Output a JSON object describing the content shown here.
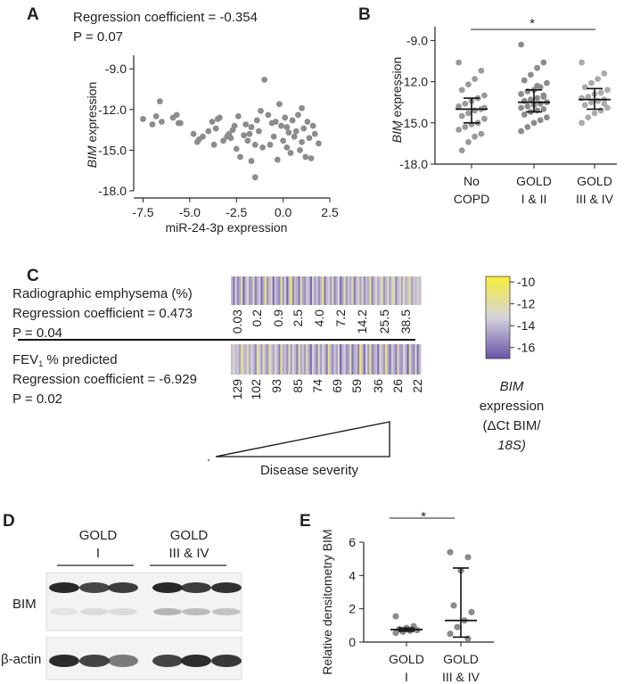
{
  "colors": {
    "point": "#8c8c8c",
    "point_light": "#ababab",
    "axis": "#222222",
    "heat_low": "#6a56a8",
    "heat_mid": "#d6d3dc",
    "heat_high": "#f7ee3a"
  },
  "chart_data": [
    {
      "panel": "A",
      "type": "scatter",
      "annotation_line1": "Regression coefficient = -0.354",
      "annotation_line2": "P = 0.07",
      "xlabel": "miR-24-3p expression",
      "ylabel_italic": "BIM",
      "ylabel_rest": " expression",
      "xlim": [
        -8,
        2.5
      ],
      "ylim": [
        -18,
        -8
      ],
      "xticks": [
        "-7.5",
        "-5.0",
        "-2.5",
        "0.0",
        "2.5"
      ],
      "yticks": [
        "-9.0",
        "-12.0",
        "-15.0",
        "-18.0"
      ],
      "points": [
        [
          -7.5,
          -12.7
        ],
        [
          -7.0,
          -13.1
        ],
        [
          -6.8,
          -12.5
        ],
        [
          -6.6,
          -11.4
        ],
        [
          -6.5,
          -12.9
        ],
        [
          -5.9,
          -12.6
        ],
        [
          -5.7,
          -12.4
        ],
        [
          -5.6,
          -13.0
        ],
        [
          -5.5,
          -13.0
        ],
        [
          -4.8,
          -13.8
        ],
        [
          -4.5,
          -14.2
        ],
        [
          -4.3,
          -14.0
        ],
        [
          -4.0,
          -13.6
        ],
        [
          -3.8,
          -12.9
        ],
        [
          -3.7,
          -14.6
        ],
        [
          -3.6,
          -13.4
        ],
        [
          -3.5,
          -12.7
        ],
        [
          -3.4,
          -12.6
        ],
        [
          -3.2,
          -14.3
        ],
        [
          -3.0,
          -14.0
        ],
        [
          -2.9,
          -13.8
        ],
        [
          -2.8,
          -14.1
        ],
        [
          -2.7,
          -13.5
        ],
        [
          -2.5,
          -14.9
        ],
        [
          -2.4,
          -12.5
        ],
        [
          -2.3,
          -15.5
        ],
        [
          -2.1,
          -13.9
        ],
        [
          -2.0,
          -13.1
        ],
        [
          -1.9,
          -14.3
        ],
        [
          -1.8,
          -13.8
        ],
        [
          -1.7,
          -15.8
        ],
        [
          -1.7,
          -13.3
        ],
        [
          -1.5,
          -17.0
        ],
        [
          -1.5,
          -14.6
        ],
        [
          -1.4,
          -12.8
        ],
        [
          -1.3,
          -13.6
        ],
        [
          -1.2,
          -12.1
        ],
        [
          -1.1,
          -14.8
        ],
        [
          -1.0,
          -9.8
        ],
        [
          -0.8,
          -12.4
        ],
        [
          -0.7,
          -14.6
        ],
        [
          -0.6,
          -13.0
        ],
        [
          -0.5,
          -14.0
        ],
        [
          -0.4,
          -12.9
        ],
        [
          -0.3,
          -15.7
        ],
        [
          -0.2,
          -11.6
        ],
        [
          -0.1,
          -13.2
        ],
        [
          0.0,
          -14.3
        ],
        [
          0.1,
          -12.6
        ],
        [
          0.2,
          -13.3
        ],
        [
          0.2,
          -14.8
        ],
        [
          0.3,
          -13.7
        ],
        [
          0.4,
          -15.2
        ],
        [
          0.5,
          -12.8
        ],
        [
          0.6,
          -14.0
        ],
        [
          0.7,
          -13.6
        ],
        [
          0.8,
          -12.4
        ],
        [
          0.9,
          -15.0
        ],
        [
          1.0,
          -14.4
        ],
        [
          1.0,
          -11.9
        ],
        [
          1.1,
          -13.4
        ],
        [
          1.2,
          -15.5
        ],
        [
          1.3,
          -12.9
        ],
        [
          1.4,
          -14.1
        ],
        [
          1.5,
          -15.6
        ],
        [
          1.6,
          -13.2
        ],
        [
          1.7,
          -13.8
        ],
        [
          1.9,
          -14.5
        ],
        [
          -4.6,
          -14.4
        ],
        [
          -2.6,
          -13.2
        ]
      ]
    },
    {
      "panel": "B",
      "type": "scatter",
      "ylabel_italic": "BIM",
      "ylabel_rest": " expression",
      "ylim": [
        -18,
        -8
      ],
      "yticks": [
        "-9.0",
        "-12.0",
        "-15.0",
        "-18.0"
      ],
      "significance": "*",
      "groups": [
        {
          "label_line1": "No",
          "label_line2": "COPD",
          "median": -14.0,
          "q1": -15.0,
          "q3": -13.2,
          "values": [
            -10.6,
            -11.2,
            -11.8,
            -12.2,
            -12.6,
            -13.0,
            -13.2,
            -13.4,
            -13.6,
            -13.8,
            -14.0,
            -14.1,
            -14.3,
            -14.5,
            -14.7,
            -15.0,
            -15.1,
            -15.3,
            -15.5,
            -15.8,
            -16.0,
            -16.4,
            -17.0,
            -13.9
          ]
        },
        {
          "label_line1": "GOLD",
          "label_line2": "I & II",
          "median": -13.5,
          "q1": -14.2,
          "q3": -12.6,
          "values": [
            -9.3,
            -10.6,
            -11.0,
            -11.5,
            -11.9,
            -12.1,
            -12.4,
            -12.6,
            -12.7,
            -12.9,
            -13.0,
            -13.2,
            -13.3,
            -13.4,
            -13.5,
            -13.6,
            -13.7,
            -13.8,
            -13.9,
            -14.0,
            -14.1,
            -14.2,
            -14.4,
            -14.6,
            -14.8,
            -15.0,
            -15.3,
            -15.6,
            -13.1,
            -12.3
          ]
        },
        {
          "label_line1": "GOLD",
          "label_line2": "III & IV",
          "median": -13.3,
          "q1": -14.0,
          "q3": -12.5,
          "values": [
            -10.6,
            -11.4,
            -11.8,
            -12.1,
            -12.4,
            -12.6,
            -12.8,
            -12.9,
            -13.1,
            -13.2,
            -13.3,
            -13.4,
            -13.5,
            -13.7,
            -13.9,
            -14.1,
            -14.3,
            -14.6,
            -15.0,
            -13.6
          ]
        }
      ]
    },
    {
      "panel": "C",
      "type": "heatmap",
      "row1_title": "Radiographic emphysema (%)",
      "row1_coef": "Regression coefficient = 0.473",
      "row1_p": "P = 0.04",
      "row1_ticks": [
        "0.03",
        "0.2",
        "0.9",
        "2.5",
        "4.0",
        "7.2",
        "14.2",
        "25.5",
        "38.5"
      ],
      "row2_title_main": "FEV",
      "row2_title_sub": "1",
      "row2_title_rest": " % predicted",
      "row2_coef": "Regression coefficient = -6.929",
      "row2_p": "P = 0.02",
      "row2_ticks": [
        "129",
        "102",
        "93",
        "85",
        "74",
        "69",
        "59",
        "36",
        "26",
        "22"
      ],
      "severity_label": "Disease severity",
      "colorbar_ticks": [
        "-10",
        "-12",
        "-14",
        "-16"
      ],
      "colorbar_range": [
        -17,
        -9.5
      ],
      "legend_line1": "BIM",
      "legend_line2": "expression",
      "legend_line3": "(ΔCt BIM/",
      "legend_line4": "18S)",
      "row1_values": [
        -14,
        -16,
        -13,
        -15.5,
        -14.5,
        -12,
        -16.5,
        -14,
        -13,
        -15,
        -14.8,
        -12.5,
        -15.8,
        -14.2,
        -13.5,
        -16,
        -14.5,
        -11,
        -15,
        -14,
        -12.8,
        -16.2,
        -13.8,
        -14.6,
        -15.4,
        -11.5,
        -14.9,
        -13.2,
        -16.3,
        -14,
        -10.2,
        -15.6,
        -13.9,
        -14.4,
        -16,
        -12.2,
        -14.7,
        -15.2,
        -13.4,
        -14.1,
        -16.4,
        -12.9,
        -14.8,
        -13.6,
        -15.3,
        -14.2,
        -11.2,
        -15.9,
        -14,
        -13.3,
        -14.9,
        -12.4,
        -15.5,
        -14.3,
        -13.1,
        -16.1,
        -14.6,
        -12,
        -15,
        -13.7,
        -14.5,
        -11.8,
        -15.7,
        -14.1,
        -13,
        -14.8,
        -12.6,
        -15.2,
        -13.9,
        -14.4,
        -11.4,
        -15.6,
        -14,
        -12.8,
        -14.7,
        -13.5,
        -11.9,
        -15.1,
        -14.2,
        -12.3,
        -14.9,
        -13.4,
        -11.6,
        -15.4,
        -14.1,
        -13.2,
        -14.6,
        -12.1,
        -14.3,
        -13.8,
        -11.3,
        -14.8,
        -13.6,
        -14,
        -12.7,
        -13.9
      ]
    },
    {
      "panel": "E",
      "type": "scatter",
      "ylabel": "Relative densitometry BIM",
      "ylim": [
        0,
        6
      ],
      "yticks": [
        "0",
        "2",
        "4",
        "6"
      ],
      "significance": "*",
      "groups": [
        {
          "label_line1": "GOLD",
          "label_line2": "I",
          "median": 0.75,
          "q1": 0.65,
          "q3": 0.85,
          "values": [
            1.55,
            0.95,
            0.85,
            0.78,
            0.72,
            0.68,
            0.62,
            0.55
          ]
        },
        {
          "label_line1": "GOLD",
          "label_line2": "III & IV",
          "median": 1.3,
          "q1": 0.3,
          "q3": 4.45,
          "values": [
            5.4,
            5.1,
            4.3,
            2.2,
            1.8,
            1.3,
            0.9,
            0.5,
            0.2
          ]
        }
      ]
    }
  ],
  "blot": {
    "panel": "D",
    "group1_line1": "GOLD",
    "group1_line2": "I",
    "group2_line1": "GOLD",
    "group2_line2": "III & IV",
    "row1_label": "BIM",
    "row2_label": "β-actin"
  },
  "panel_labels": [
    "A",
    "B",
    "C",
    "D",
    "E"
  ]
}
